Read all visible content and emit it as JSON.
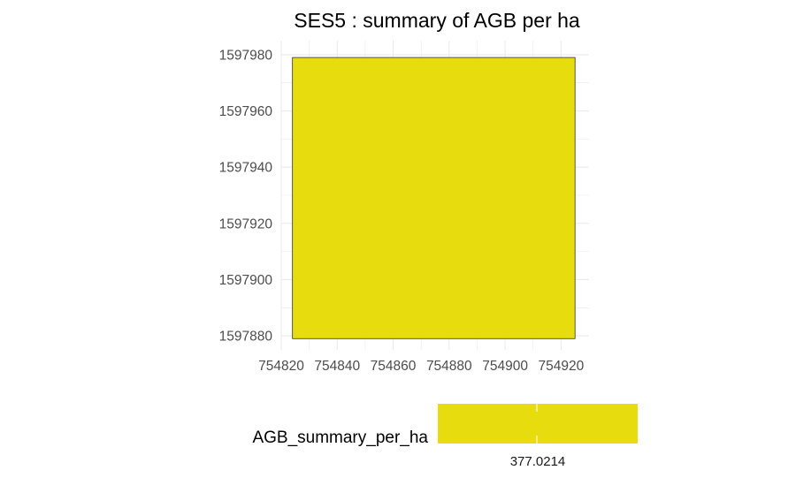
{
  "chart_data": {
    "type": "heatmap",
    "title": "SES5 : summary of AGB per ha",
    "xlabel": "",
    "ylabel": "",
    "x_ticks": [
      754820,
      754840,
      754860,
      754880,
      754900,
      754920
    ],
    "y_ticks": [
      1597880,
      1597900,
      1597920,
      1597940,
      1597960,
      1597980
    ],
    "xlim": [
      754820,
      754930
    ],
    "ylim": [
      1597875,
      1597985
    ],
    "cells": [
      {
        "x_min": 754824,
        "x_max": 754925,
        "y_min": 1597879,
        "y_max": 1597979,
        "value": 377.0214,
        "color": "#e6dc0e"
      }
    ],
    "grid": true,
    "legend": {
      "position": "bottom",
      "title": "AGB_summary_per_ha",
      "labels": [
        "377.0214"
      ],
      "values": [
        377.0214
      ],
      "color": "#e6dc0e"
    }
  },
  "colors": {
    "fill": "#e6dc0e",
    "outline": "#333333",
    "grid": "#ebebeb",
    "tick_text": "#4d4d4d",
    "title_text": "#000000"
  }
}
